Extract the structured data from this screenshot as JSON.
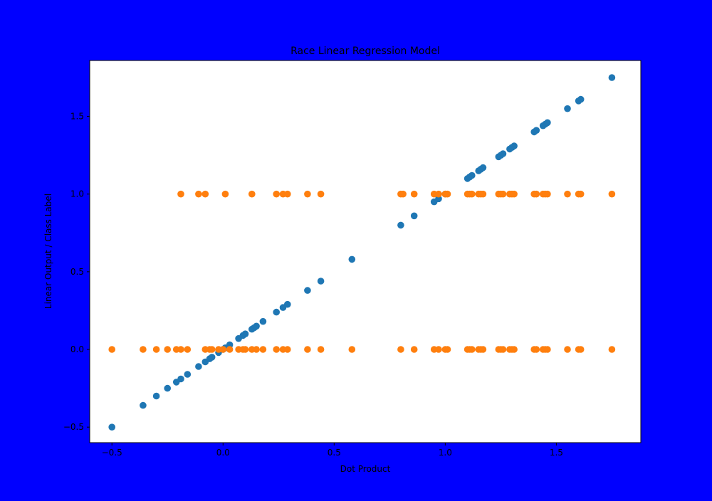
{
  "chart_data": {
    "type": "scatter",
    "title": "Race Linear Regression Model",
    "xlabel": "Dot Product",
    "ylabel": "Linear Output / Class Label",
    "xlim": [
      -0.6,
      1.88
    ],
    "ylim": [
      -0.6,
      1.86
    ],
    "grid": false,
    "xticks": [
      {
        "value": -0.5,
        "label": "−0.5"
      },
      {
        "value": 0.0,
        "label": "0.0"
      },
      {
        "value": 0.5,
        "label": "0.5"
      },
      {
        "value": 1.0,
        "label": "1.0"
      },
      {
        "value": 1.5,
        "label": "1.5"
      }
    ],
    "yticks": [
      {
        "value": -0.5,
        "label": "−0.5"
      },
      {
        "value": 0.0,
        "label": "0.0"
      },
      {
        "value": 0.5,
        "label": "0.5"
      },
      {
        "value": 1.0,
        "label": "1.0"
      },
      {
        "value": 1.5,
        "label": "1.5"
      }
    ],
    "colors": {
      "background": "#0000ff",
      "plot_area": "#ffffff",
      "series_1": "#1f77b4",
      "series_2": "#ff7f0e"
    },
    "series": [
      {
        "color": "#1f77b4",
        "x": [
          -0.5,
          -0.36,
          -0.3,
          -0.25,
          -0.21,
          -0.19,
          -0.16,
          -0.11,
          -0.08,
          -0.06,
          -0.05,
          -0.02,
          0.0,
          0.01,
          0.03,
          0.07,
          0.09,
          0.1,
          0.13,
          0.14,
          0.15,
          0.18,
          0.24,
          0.27,
          0.29,
          0.38,
          0.44,
          0.58,
          0.8,
          0.86,
          0.95,
          0.97,
          1.0,
          1.1,
          1.11,
          1.12,
          1.15,
          1.16,
          1.17,
          1.24,
          1.25,
          1.26,
          1.29,
          1.3,
          1.31,
          1.4,
          1.41,
          1.44,
          1.45,
          1.46,
          1.55,
          1.6,
          1.61,
          1.75
        ],
        "y": [
          -0.5,
          -0.36,
          -0.3,
          -0.25,
          -0.21,
          -0.19,
          -0.16,
          -0.11,
          -0.08,
          -0.06,
          -0.05,
          -0.02,
          0.0,
          0.01,
          0.03,
          0.07,
          0.09,
          0.1,
          0.13,
          0.14,
          0.15,
          0.18,
          0.24,
          0.27,
          0.29,
          0.38,
          0.44,
          0.58,
          0.8,
          0.86,
          0.95,
          0.97,
          1.0,
          1.1,
          1.11,
          1.12,
          1.15,
          1.16,
          1.17,
          1.24,
          1.25,
          1.26,
          1.29,
          1.3,
          1.31,
          1.4,
          1.41,
          1.44,
          1.45,
          1.46,
          1.55,
          1.6,
          1.61,
          1.75
        ]
      },
      {
        "color": "#ff7f0e",
        "x": [
          -0.19,
          -0.11,
          -0.08,
          0.01,
          0.13,
          0.24,
          0.27,
          0.29,
          0.38,
          0.44,
          0.8,
          0.81,
          0.86,
          0.95,
          0.97,
          1.0,
          1.01,
          1.1,
          1.11,
          1.12,
          1.15,
          1.16,
          1.17,
          1.24,
          1.25,
          1.26,
          1.29,
          1.3,
          1.31,
          1.4,
          1.41,
          1.44,
          1.45,
          1.46,
          1.55,
          1.6,
          1.61,
          1.75,
          -0.5,
          -0.36,
          -0.3,
          -0.25,
          -0.21,
          -0.19,
          -0.16,
          -0.08,
          -0.06,
          -0.05,
          -0.02,
          0.0,
          0.03,
          0.07,
          0.09,
          0.1,
          0.13,
          0.15,
          0.18,
          0.24,
          0.27,
          0.29,
          0.38,
          0.44,
          0.58,
          0.8,
          0.86,
          0.95,
          0.97,
          1.0,
          1.01,
          1.1,
          1.11,
          1.12,
          1.15,
          1.16,
          1.17,
          1.24,
          1.25,
          1.26,
          1.29,
          1.3,
          1.31,
          1.4,
          1.41,
          1.44,
          1.45,
          1.46,
          1.55,
          1.6,
          1.61,
          1.75
        ],
        "y": [
          1,
          1,
          1,
          1,
          1,
          1,
          1,
          1,
          1,
          1,
          1,
          1,
          1,
          1,
          1,
          1,
          1,
          1,
          1,
          1,
          1,
          1,
          1,
          1,
          1,
          1,
          1,
          1,
          1,
          1,
          1,
          1,
          1,
          1,
          1,
          1,
          1,
          1,
          0,
          0,
          0,
          0,
          0,
          0,
          0,
          0,
          0,
          0,
          0,
          0,
          0,
          0,
          0,
          0,
          0,
          0,
          0,
          0,
          0,
          0,
          0,
          0,
          0,
          0,
          0,
          0,
          0,
          0,
          0,
          0,
          0,
          0,
          0,
          0,
          0,
          0,
          0,
          0,
          0,
          0,
          0,
          0,
          0,
          0,
          0,
          0,
          0,
          0,
          0,
          0
        ]
      }
    ]
  }
}
